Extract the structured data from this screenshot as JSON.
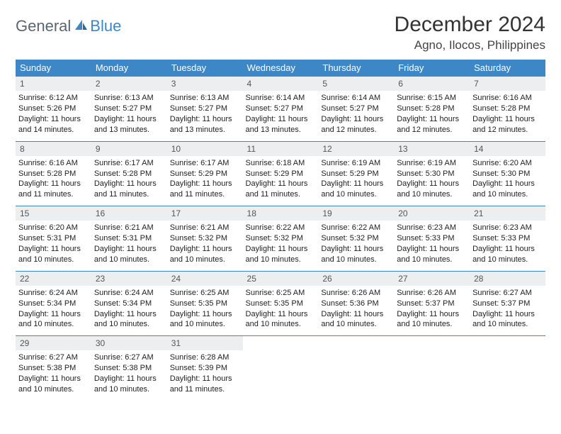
{
  "logo": {
    "text1": "General",
    "text2": "Blue"
  },
  "title": "December 2024",
  "location": "Agno, Ilocos, Philippines",
  "colors": {
    "header_bg": "#3d87c7",
    "header_text": "#ffffff",
    "band_bg": "#eceeef",
    "row_border": "#3d87c7",
    "logo_gray": "#5c6670",
    "logo_blue": "#3d87c7"
  },
  "day_headers": [
    "Sunday",
    "Monday",
    "Tuesday",
    "Wednesday",
    "Thursday",
    "Friday",
    "Saturday"
  ],
  "weeks": [
    [
      {
        "n": "1",
        "sr": "Sunrise: 6:12 AM",
        "ss": "Sunset: 5:26 PM",
        "dl": "Daylight: 11 hours and 14 minutes."
      },
      {
        "n": "2",
        "sr": "Sunrise: 6:13 AM",
        "ss": "Sunset: 5:27 PM",
        "dl": "Daylight: 11 hours and 13 minutes."
      },
      {
        "n": "3",
        "sr": "Sunrise: 6:13 AM",
        "ss": "Sunset: 5:27 PM",
        "dl": "Daylight: 11 hours and 13 minutes."
      },
      {
        "n": "4",
        "sr": "Sunrise: 6:14 AM",
        "ss": "Sunset: 5:27 PM",
        "dl": "Daylight: 11 hours and 13 minutes."
      },
      {
        "n": "5",
        "sr": "Sunrise: 6:14 AM",
        "ss": "Sunset: 5:27 PM",
        "dl": "Daylight: 11 hours and 12 minutes."
      },
      {
        "n": "6",
        "sr": "Sunrise: 6:15 AM",
        "ss": "Sunset: 5:28 PM",
        "dl": "Daylight: 11 hours and 12 minutes."
      },
      {
        "n": "7",
        "sr": "Sunrise: 6:16 AM",
        "ss": "Sunset: 5:28 PM",
        "dl": "Daylight: 11 hours and 12 minutes."
      }
    ],
    [
      {
        "n": "8",
        "sr": "Sunrise: 6:16 AM",
        "ss": "Sunset: 5:28 PM",
        "dl": "Daylight: 11 hours and 11 minutes."
      },
      {
        "n": "9",
        "sr": "Sunrise: 6:17 AM",
        "ss": "Sunset: 5:28 PM",
        "dl": "Daylight: 11 hours and 11 minutes."
      },
      {
        "n": "10",
        "sr": "Sunrise: 6:17 AM",
        "ss": "Sunset: 5:29 PM",
        "dl": "Daylight: 11 hours and 11 minutes."
      },
      {
        "n": "11",
        "sr": "Sunrise: 6:18 AM",
        "ss": "Sunset: 5:29 PM",
        "dl": "Daylight: 11 hours and 11 minutes."
      },
      {
        "n": "12",
        "sr": "Sunrise: 6:19 AM",
        "ss": "Sunset: 5:29 PM",
        "dl": "Daylight: 11 hours and 10 minutes."
      },
      {
        "n": "13",
        "sr": "Sunrise: 6:19 AM",
        "ss": "Sunset: 5:30 PM",
        "dl": "Daylight: 11 hours and 10 minutes."
      },
      {
        "n": "14",
        "sr": "Sunrise: 6:20 AM",
        "ss": "Sunset: 5:30 PM",
        "dl": "Daylight: 11 hours and 10 minutes."
      }
    ],
    [
      {
        "n": "15",
        "sr": "Sunrise: 6:20 AM",
        "ss": "Sunset: 5:31 PM",
        "dl": "Daylight: 11 hours and 10 minutes."
      },
      {
        "n": "16",
        "sr": "Sunrise: 6:21 AM",
        "ss": "Sunset: 5:31 PM",
        "dl": "Daylight: 11 hours and 10 minutes."
      },
      {
        "n": "17",
        "sr": "Sunrise: 6:21 AM",
        "ss": "Sunset: 5:32 PM",
        "dl": "Daylight: 11 hours and 10 minutes."
      },
      {
        "n": "18",
        "sr": "Sunrise: 6:22 AM",
        "ss": "Sunset: 5:32 PM",
        "dl": "Daylight: 11 hours and 10 minutes."
      },
      {
        "n": "19",
        "sr": "Sunrise: 6:22 AM",
        "ss": "Sunset: 5:32 PM",
        "dl": "Daylight: 11 hours and 10 minutes."
      },
      {
        "n": "20",
        "sr": "Sunrise: 6:23 AM",
        "ss": "Sunset: 5:33 PM",
        "dl": "Daylight: 11 hours and 10 minutes."
      },
      {
        "n": "21",
        "sr": "Sunrise: 6:23 AM",
        "ss": "Sunset: 5:33 PM",
        "dl": "Daylight: 11 hours and 10 minutes."
      }
    ],
    [
      {
        "n": "22",
        "sr": "Sunrise: 6:24 AM",
        "ss": "Sunset: 5:34 PM",
        "dl": "Daylight: 11 hours and 10 minutes."
      },
      {
        "n": "23",
        "sr": "Sunrise: 6:24 AM",
        "ss": "Sunset: 5:34 PM",
        "dl": "Daylight: 11 hours and 10 minutes."
      },
      {
        "n": "24",
        "sr": "Sunrise: 6:25 AM",
        "ss": "Sunset: 5:35 PM",
        "dl": "Daylight: 11 hours and 10 minutes."
      },
      {
        "n": "25",
        "sr": "Sunrise: 6:25 AM",
        "ss": "Sunset: 5:35 PM",
        "dl": "Daylight: 11 hours and 10 minutes."
      },
      {
        "n": "26",
        "sr": "Sunrise: 6:26 AM",
        "ss": "Sunset: 5:36 PM",
        "dl": "Daylight: 11 hours and 10 minutes."
      },
      {
        "n": "27",
        "sr": "Sunrise: 6:26 AM",
        "ss": "Sunset: 5:37 PM",
        "dl": "Daylight: 11 hours and 10 minutes."
      },
      {
        "n": "28",
        "sr": "Sunrise: 6:27 AM",
        "ss": "Sunset: 5:37 PM",
        "dl": "Daylight: 11 hours and 10 minutes."
      }
    ],
    [
      {
        "n": "29",
        "sr": "Sunrise: 6:27 AM",
        "ss": "Sunset: 5:38 PM",
        "dl": "Daylight: 11 hours and 10 minutes."
      },
      {
        "n": "30",
        "sr": "Sunrise: 6:27 AM",
        "ss": "Sunset: 5:38 PM",
        "dl": "Daylight: 11 hours and 10 minutes."
      },
      {
        "n": "31",
        "sr": "Sunrise: 6:28 AM",
        "ss": "Sunset: 5:39 PM",
        "dl": "Daylight: 11 hours and 11 minutes."
      },
      null,
      null,
      null,
      null
    ]
  ]
}
